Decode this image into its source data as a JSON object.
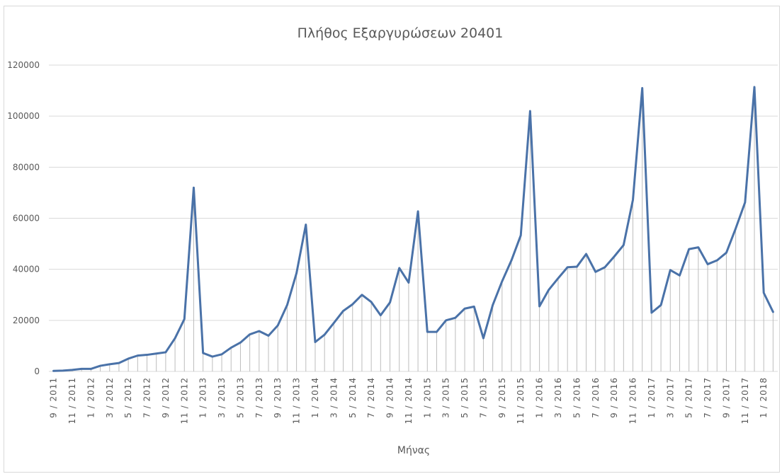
{
  "chart_data": {
    "type": "line",
    "title": "Πλήθος Εξαργυρώσεων 20401",
    "xlabel": "Μήνας",
    "ylabel": "",
    "ylim": [
      0,
      120000
    ],
    "yticks": [
      0,
      20000,
      40000,
      60000,
      80000,
      100000,
      120000
    ],
    "grid": true,
    "drop_lines": true,
    "line_color": "#4a72a8",
    "x": [
      "9 / 2011",
      "10 / 2011",
      "11 / 2011",
      "12 / 2011",
      "1 / 2012",
      "2 / 2012",
      "3 / 2012",
      "4 / 2012",
      "5 / 2012",
      "6 / 2012",
      "7 / 2012",
      "8 / 2012",
      "9 / 2012",
      "10 / 2012",
      "11 / 2012",
      "12 / 2012",
      "1 / 2013",
      "2 / 2013",
      "3 / 2013",
      "4 / 2013",
      "5 / 2013",
      "6 / 2013",
      "7 / 2013",
      "8 / 2013",
      "9 / 2013",
      "10 / 2013",
      "11 / 2013",
      "12 / 2013",
      "1 / 2014",
      "2 / 2014",
      "3 / 2014",
      "4 / 2014",
      "5 / 2014",
      "6 / 2014",
      "7 / 2014",
      "8 / 2014",
      "9 / 2014",
      "10 / 2014",
      "11 / 2014",
      "12 / 2014",
      "1 / 2015",
      "2 / 2015",
      "3 / 2015",
      "4 / 2015",
      "5 / 2015",
      "6 / 2015",
      "7 / 2015",
      "8 / 2015",
      "9 / 2015",
      "10 / 2015",
      "11 / 2015",
      "12 / 2015",
      "1 / 2016",
      "2 / 2016",
      "3 / 2016",
      "4 / 2016",
      "5 / 2016",
      "6 / 2016",
      "7 / 2016",
      "8 / 2016",
      "9 / 2016",
      "10 / 2016",
      "11 / 2016",
      "12 / 2016",
      "1 / 2017",
      "2 / 2017",
      "3 / 2017",
      "4 / 2017",
      "5 / 2017",
      "6 / 2017",
      "7 / 2017",
      "8 / 2017",
      "9 / 2017",
      "10 / 2017",
      "11 / 2017",
      "12 / 2017",
      "1 / 2018",
      "2 / 2018"
    ],
    "tick_labels": [
      "9 / 2011",
      "11 / 2011",
      "1 / 2012",
      "3 / 2012",
      "5 / 2012",
      "7 / 2012",
      "9 / 2012",
      "11 / 2012",
      "1 / 2013",
      "3 / 2013",
      "5 / 2013",
      "7 / 2013",
      "9 / 2013",
      "11 / 2013",
      "1 / 2014",
      "3 / 2014",
      "5 / 2014",
      "7 / 2014",
      "9 / 2014",
      "11 / 2014",
      "1 / 2015",
      "3 / 2015",
      "5 / 2015",
      "7 / 2015",
      "9 / 2015",
      "11 / 2015",
      "1 / 2016",
      "3 / 2016",
      "5 / 2016",
      "7 / 2016",
      "9 / 2016",
      "11 / 2016",
      "1 / 2017",
      "3 / 2017",
      "5 / 2017",
      "7 / 2017",
      "9 / 2017",
      "11 / 2017",
      "1 / 2018"
    ],
    "series": [
      {
        "values": [
          200,
          300,
          600,
          1000,
          1000,
          2200,
          2800,
          3300,
          5000,
          6200,
          6500,
          7000,
          7500,
          13000,
          20500,
          72000,
          7200,
          5800,
          6700,
          9300,
          11300,
          14500,
          15800,
          14000,
          18000,
          26000,
          38500,
          57500,
          11500,
          14400,
          19000,
          23700,
          26300,
          30000,
          27200,
          22000,
          27000,
          40500,
          34800,
          62700,
          15500,
          15500,
          20000,
          21000,
          24600,
          25400,
          13000,
          26000,
          35300,
          43500,
          53300,
          102000,
          25500,
          32000,
          36500,
          40800,
          41000,
          46000,
          39000,
          40800,
          45000,
          49500,
          67200,
          111000,
          23000,
          26000,
          39700,
          37600,
          47900,
          48600,
          42000,
          43500,
          46500,
          56000,
          66200,
          111400,
          30800,
          23300
        ]
      }
    ]
  }
}
